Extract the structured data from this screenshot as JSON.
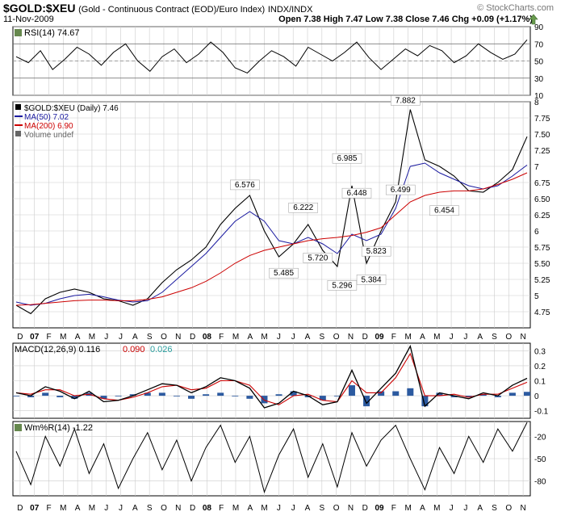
{
  "header": {
    "symbol": "$GOLD:$XEU",
    "description": "(Gold - Continuous Contract (EOD)/Euro Index)",
    "exchange": "INDX/INDX",
    "date": "11-Nov-2009",
    "ohlc": "Open 7.38  High 7.47  Low 7.38  Close 7.46  Chg +0.09 (+1.17%)",
    "brand": "© StockCharts.com",
    "trend_icon": "up-arrow-icon"
  },
  "x_axis": {
    "months": [
      "D",
      "07",
      "F",
      "M",
      "A",
      "M",
      "J",
      "J",
      "A",
      "S",
      "O",
      "N",
      "D",
      "08",
      "F",
      "M",
      "A",
      "M",
      "J",
      "J",
      "A",
      "S",
      "O",
      "N",
      "D",
      "09",
      "F",
      "M",
      "A",
      "M",
      "J",
      "J",
      "A",
      "S",
      "O",
      "N"
    ],
    "year_labels": [
      "07",
      "08",
      "09"
    ]
  },
  "colors": {
    "price": "#000000",
    "ma50": "#1a1aa0",
    "ma200": "#cc0000",
    "macd_hist": "#2c5aa0",
    "signal": "#cc0000",
    "histogram_label": "#2aa0a0",
    "extreme_fill": "#66884e",
    "grid": "#cccccc"
  },
  "chart_data": [
    {
      "type": "line",
      "title": "RSI(14) 74.67",
      "legend": [
        {
          "name": "RSI(14) 74.67"
        }
      ],
      "ylim": [
        10,
        90
      ],
      "yticks": [
        10,
        30,
        50,
        70,
        90
      ],
      "series": [
        {
          "name": "RSI(14)",
          "values": [
            55,
            48,
            62,
            40,
            52,
            66,
            58,
            45,
            60,
            70,
            50,
            38,
            55,
            64,
            48,
            58,
            72,
            60,
            42,
            36,
            50,
            62,
            55,
            44,
            66,
            58,
            50,
            60,
            72,
            54,
            40,
            52,
            64,
            56,
            68,
            62,
            48,
            56,
            70,
            60,
            52,
            58,
            74.67
          ]
        }
      ]
    },
    {
      "type": "line",
      "title": "$GOLD:$XEU (Daily) 7.46",
      "legend": [
        {
          "name": "$GOLD:$XEU (Daily) 7.46"
        },
        {
          "name": "MA(50) 7.02"
        },
        {
          "name": "MA(200) 6.90"
        },
        {
          "name": "Volume undef"
        }
      ],
      "ylim": [
        4.5,
        8.0
      ],
      "yticks": [
        4.75,
        5.0,
        5.25,
        5.5,
        5.75,
        6.0,
        6.25,
        6.5,
        6.75,
        7.0,
        7.25,
        7.5,
        7.75,
        8.0
      ],
      "x": [
        0,
        1,
        2,
        3,
        4,
        5,
        6,
        7,
        8,
        9,
        10,
        11,
        12,
        13,
        14,
        15,
        16,
        17,
        18,
        19,
        20,
        21,
        22,
        23,
        24,
        25,
        26,
        27,
        28,
        29,
        30,
        31,
        32,
        33,
        34,
        35
      ],
      "series": [
        {
          "name": "$GOLD:$XEU (Daily) 7.46",
          "values": [
            4.85,
            4.72,
            4.95,
            5.05,
            5.1,
            5.05,
            4.95,
            4.92,
            4.85,
            4.95,
            5.2,
            5.4,
            5.55,
            5.75,
            6.1,
            6.35,
            6.55,
            6.0,
            5.6,
            5.8,
            6.1,
            5.7,
            5.45,
            6.7,
            5.5,
            6.0,
            6.45,
            7.88,
            7.1,
            7.0,
            6.85,
            6.62,
            6.6,
            6.75,
            6.95,
            7.46
          ]
        },
        {
          "name": "MA(50) 7.02",
          "values": [
            4.9,
            4.85,
            4.88,
            4.95,
            5.0,
            5.02,
            4.98,
            4.93,
            4.9,
            4.92,
            5.05,
            5.25,
            5.45,
            5.65,
            5.9,
            6.15,
            6.3,
            6.15,
            5.85,
            5.8,
            5.9,
            5.8,
            5.65,
            5.95,
            5.85,
            5.95,
            6.35,
            7.0,
            7.05,
            6.9,
            6.8,
            6.7,
            6.65,
            6.7,
            6.85,
            7.02
          ]
        },
        {
          "name": "MA(200) 6.90",
          "values": [
            4.85,
            4.86,
            4.88,
            4.9,
            4.92,
            4.93,
            4.93,
            4.92,
            4.92,
            4.94,
            4.98,
            5.05,
            5.12,
            5.22,
            5.35,
            5.5,
            5.62,
            5.7,
            5.75,
            5.8,
            5.85,
            5.88,
            5.9,
            5.93,
            5.98,
            6.05,
            6.25,
            6.45,
            6.55,
            6.6,
            6.62,
            6.62,
            6.65,
            6.72,
            6.8,
            6.9
          ]
        }
      ],
      "annotations": [
        "6.576",
        "5.485",
        "6.222",
        "5.296",
        "5.720",
        "6.448",
        "6.985",
        "5.384",
        "5.823",
        "6.499",
        "7.882",
        "6.454"
      ]
    },
    {
      "type": "line",
      "title": "MACD(12,26,9) 0.116, 0.090, 0.026",
      "legend": [
        {
          "name": "MACD(12,26,9) 0.116"
        },
        {
          "name": "0.090"
        },
        {
          "name": "0.026"
        }
      ],
      "ylim": [
        -0.15,
        0.35
      ],
      "yticks": [
        -0.1,
        0.0,
        0.1,
        0.2,
        0.3
      ],
      "series": [
        {
          "name": "MACD(12,26,9) 0.116",
          "values": [
            0.02,
            0.0,
            0.06,
            0.03,
            -0.02,
            0.03,
            -0.04,
            -0.03,
            0.0,
            0.04,
            0.08,
            0.07,
            0.02,
            0.06,
            0.12,
            0.1,
            0.05,
            -0.08,
            -0.05,
            0.03,
            0.0,
            -0.06,
            -0.04,
            0.17,
            -0.05,
            0.05,
            0.15,
            0.33,
            -0.07,
            0.02,
            0.0,
            -0.02,
            0.02,
            0.0,
            0.07,
            0.116
          ]
        },
        {
          "name": "0.090",
          "values": [
            0.02,
            0.01,
            0.04,
            0.04,
            0.0,
            0.01,
            -0.02,
            -0.03,
            -0.01,
            0.02,
            0.06,
            0.07,
            0.04,
            0.05,
            0.1,
            0.1,
            0.07,
            -0.03,
            -0.06,
            0.0,
            0.01,
            -0.03,
            -0.04,
            0.1,
            0.02,
            0.02,
            0.12,
            0.28,
            0.0,
            0.0,
            0.01,
            -0.01,
            0.01,
            0.01,
            0.05,
            0.09
          ]
        },
        {
          "name": "0.026",
          "values": [
            0.0,
            -0.01,
            0.02,
            -0.01,
            -0.02,
            0.02,
            -0.02,
            0.0,
            0.01,
            0.02,
            0.02,
            0.0,
            -0.02,
            0.01,
            0.02,
            0.0,
            -0.02,
            -0.05,
            0.01,
            0.03,
            -0.01,
            -0.03,
            0.0,
            0.07,
            -0.07,
            0.03,
            0.03,
            0.05,
            -0.07,
            0.02,
            -0.01,
            -0.01,
            0.01,
            -0.01,
            0.02,
            0.026
          ]
        }
      ]
    },
    {
      "type": "line",
      "title": "Wm%R(14) -1.22",
      "legend": [
        {
          "name": "Wm%R(14) -1.22"
        }
      ],
      "ylim": [
        -100,
        0
      ],
      "yticks": [
        -80,
        -50,
        -20
      ],
      "series": [
        {
          "name": "Wm%R(14)",
          "values": [
            -40,
            -85,
            -20,
            -60,
            -10,
            -70,
            -30,
            -90,
            -50,
            -15,
            -65,
            -25,
            -80,
            -35,
            -5,
            -55,
            -20,
            -95,
            -45,
            -10,
            -75,
            -30,
            -88,
            -15,
            -60,
            -25,
            -5,
            -50,
            -92,
            -35,
            -70,
            -20,
            -55,
            -10,
            -40,
            -1.22
          ]
        }
      ]
    }
  ]
}
